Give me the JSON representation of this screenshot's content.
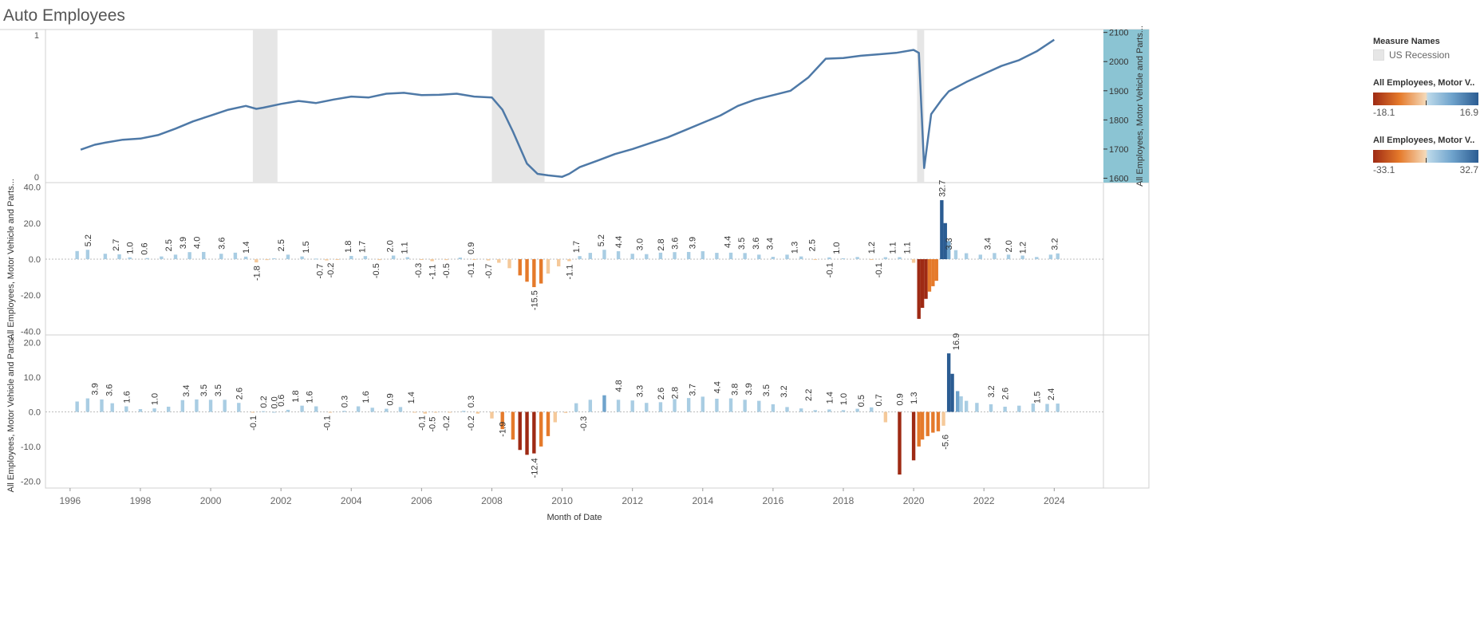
{
  "dashboard": {
    "title": "Auto Employees",
    "x_axis_title": "Month of Date"
  },
  "legends": {
    "measure_names": {
      "title": "Measure Names",
      "item": "US Recession",
      "color": "#e6e6e6"
    },
    "ramp_top": {
      "title": "All Employees, Motor V..",
      "min": "-18.1",
      "max": "16.9"
    },
    "ramp_bottom": {
      "title": "All Employees, Motor V..",
      "min": "-33.1",
      "max": "32.7"
    },
    "colors": {
      "neg_dark": "#9e2a14",
      "neg_mid": "#e57a2b",
      "neg_light": "#f5c99a",
      "pos_light": "#a9cde3",
      "pos_mid": "#6fa3cc",
      "pos_dark": "#2b5c92",
      "line": "#4e79a7",
      "recession": "#e6e6e6",
      "axis_band": "#8bc4d3"
    }
  },
  "chart_data": [
    {
      "type": "line",
      "title": "",
      "xlabel": "Month of Date",
      "ylabel": "All Employees, Motor Vehicle and Parts...",
      "left_axis": {
        "ticks": [
          "0",
          "1"
        ]
      },
      "ylim": [
        1585,
        2110
      ],
      "y_ticks": [
        1600,
        1700,
        1800,
        1900,
        2000,
        2100
      ],
      "recessions": [
        [
          2001.2,
          2001.9
        ],
        [
          2008.0,
          2009.5
        ],
        [
          2020.1,
          2020.3
        ]
      ],
      "series": [
        {
          "x": [
            1996.3,
            1996.7,
            1997.0,
            1997.5,
            1998.0,
            1998.5,
            1999.0,
            1999.5,
            2000.0,
            2000.5,
            2001.0,
            2001.3,
            2001.5,
            2002.0,
            2002.5,
            2003.0,
            2003.5,
            2004.0,
            2004.5,
            2005.0,
            2005.5,
            2006.0,
            2006.5,
            2007.0,
            2007.5,
            2008.0,
            2008.3,
            2008.6,
            2009.0,
            2009.3,
            2009.6,
            2010.0,
            2010.2,
            2010.5,
            2011.0,
            2011.5,
            2012.0,
            2012.5,
            2013.0,
            2013.5,
            2014.0,
            2014.5,
            2015.0,
            2015.5,
            2016.0,
            2016.5,
            2017.0,
            2017.5,
            2018.0,
            2018.5,
            2019.0,
            2019.5,
            2020.0,
            2020.15,
            2020.3,
            2020.5,
            2020.8,
            2021.0,
            2021.5,
            2022.0,
            2022.5,
            2023.0,
            2023.5,
            2024.0
          ],
          "y": [
            1698,
            1715,
            1722,
            1732,
            1736,
            1748,
            1770,
            1795,
            1815,
            1835,
            1848,
            1838,
            1842,
            1855,
            1865,
            1858,
            1870,
            1880,
            1877,
            1890,
            1893,
            1885,
            1886,
            1890,
            1880,
            1877,
            1835,
            1760,
            1650,
            1615,
            1610,
            1605,
            1615,
            1638,
            1660,
            1683,
            1700,
            1720,
            1740,
            1765,
            1790,
            1815,
            1848,
            1870,
            1885,
            1900,
            1945,
            2010,
            2012,
            2020,
            2025,
            2030,
            2040,
            2030,
            1635,
            1820,
            1870,
            1898,
            1930,
            1958,
            1985,
            2005,
            2035,
            2075
          ]
        }
      ]
    },
    {
      "type": "bar",
      "title": "",
      "ylabel": "All Employees, Motor Vehicle and Parts...",
      "ylim": [
        -42,
        42
      ],
      "y_ticks": [
        "40.0",
        "20.0",
        "0.0",
        "-20.0",
        "-40.0"
      ],
      "x": [
        1996.2,
        1996.5,
        1997.0,
        1997.4,
        1997.7,
        1998.2,
        1998.6,
        1999.0,
        1999.4,
        1999.8,
        2000.3,
        2000.7,
        2001.0,
        2001.3,
        2001.6,
        2001.8,
        2002.2,
        2002.6,
        2003.0,
        2003.3,
        2003.6,
        2004.0,
        2004.4,
        2004.8,
        2005.2,
        2005.6,
        2006.0,
        2006.3,
        2006.7,
        2007.1,
        2007.5,
        2007.9,
        2008.2,
        2008.5,
        2008.8,
        2009.0,
        2009.2,
        2009.4,
        2009.6,
        2009.9,
        2010.2,
        2010.5,
        2010.8,
        2011.2,
        2011.6,
        2012.0,
        2012.4,
        2012.8,
        2013.2,
        2013.6,
        2014.0,
        2014.4,
        2014.8,
        2015.2,
        2015.6,
        2016.0,
        2016.4,
        2016.8,
        2017.2,
        2017.6,
        2018.0,
        2018.4,
        2018.8,
        2019.2,
        2019.6,
        2020.0,
        2020.15,
        2020.25,
        2020.35,
        2020.45,
        2020.55,
        2020.65,
        2020.8,
        2020.9,
        2021.0,
        2021.2,
        2021.5,
        2021.9,
        2022.3,
        2022.7,
        2023.1,
        2023.5,
        2023.9,
        2024.1
      ],
      "values": [
        4.5,
        5.2,
        3.0,
        2.7,
        1.0,
        0.6,
        1.5,
        2.5,
        3.9,
        4.0,
        3.0,
        3.6,
        1.4,
        -1.8,
        -0.5,
        0.5,
        2.5,
        1.5,
        0.3,
        -0.7,
        -0.2,
        1.8,
        1.7,
        -0.5,
        2.0,
        1.1,
        -0.3,
        -1.1,
        -0.5,
        0.9,
        -0.1,
        -0.7,
        -2.0,
        -5.0,
        -9.0,
        -12.5,
        -15.5,
        -13.5,
        -8.0,
        -4.0,
        -1.1,
        1.7,
        3.5,
        5.2,
        4.4,
        3.0,
        2.8,
        3.6,
        3.9,
        4.0,
        4.4,
        3.5,
        3.6,
        3.4,
        2.5,
        1.3,
        2.5,
        1.5,
        -0.1,
        1.0,
        0.5,
        1.2,
        -0.1,
        1.1,
        1.1,
        -2.0,
        -33.1,
        -27.0,
        -22.0,
        -18.0,
        -15.0,
        -12.0,
        32.7,
        20.0,
        10.0,
        5.0,
        3.3,
        2.5,
        3.4,
        2.5,
        2.0,
        1.2,
        2.5,
        3.2
      ],
      "data_labels": [
        {
          "x": 1996.5,
          "value": 5.2,
          "text": "5.2"
        },
        {
          "x": 1997.3,
          "value": 2.7,
          "text": "2.7"
        },
        {
          "x": 1997.7,
          "value": 1.0,
          "text": "1.0"
        },
        {
          "x": 1998.1,
          "value": 0.6,
          "text": "0.6"
        },
        {
          "x": 1998.8,
          "value": 2.5,
          "text": "2.5"
        },
        {
          "x": 1999.2,
          "value": 3.9,
          "text": "3.9"
        },
        {
          "x": 1999.6,
          "value": 4.0,
          "text": "4.0"
        },
        {
          "x": 2000.3,
          "value": 3.6,
          "text": "3.6"
        },
        {
          "x": 2001.0,
          "value": 1.4,
          "text": "1.4"
        },
        {
          "x": 2001.3,
          "value": -1.8,
          "text": "-1.8"
        },
        {
          "x": 2002.0,
          "value": 2.5,
          "text": "2.5"
        },
        {
          "x": 2002.7,
          "value": 1.5,
          "text": "1.5"
        },
        {
          "x": 2003.1,
          "value": -0.7,
          "text": "-0.7"
        },
        {
          "x": 2003.4,
          "value": -0.2,
          "text": "-0.2"
        },
        {
          "x": 2003.9,
          "value": 1.8,
          "text": "1.8"
        },
        {
          "x": 2004.3,
          "value": 1.7,
          "text": "1.7"
        },
        {
          "x": 2004.7,
          "value": -0.5,
          "text": "-0.5"
        },
        {
          "x": 2005.1,
          "value": 2.0,
          "text": "2.0"
        },
        {
          "x": 2005.5,
          "value": 1.1,
          "text": "1.1"
        },
        {
          "x": 2005.9,
          "value": -0.3,
          "text": "-0.3"
        },
        {
          "x": 2006.3,
          "value": -1.1,
          "text": "-1.1"
        },
        {
          "x": 2006.7,
          "value": -0.5,
          "text": "-0.5"
        },
        {
          "x": 2007.4,
          "value": 0.9,
          "text": "0.9"
        },
        {
          "x": 2007.4,
          "value": -0.1,
          "text": "-0.1"
        },
        {
          "x": 2007.9,
          "value": -0.7,
          "text": "-0.7"
        },
        {
          "x": 2009.2,
          "value": -15.5,
          "text": "-15.5"
        },
        {
          "x": 2010.2,
          "value": -1.1,
          "text": "-1.1"
        },
        {
          "x": 2010.4,
          "value": 1.7,
          "text": "1.7"
        },
        {
          "x": 2011.1,
          "value": 5.2,
          "text": "5.2"
        },
        {
          "x": 2011.6,
          "value": 4.4,
          "text": "4.4"
        },
        {
          "x": 2012.2,
          "value": 3.0,
          "text": "3.0"
        },
        {
          "x": 2012.8,
          "value": 2.8,
          "text": "2.8"
        },
        {
          "x": 2013.2,
          "value": 3.6,
          "text": "3.6"
        },
        {
          "x": 2013.7,
          "value": 3.9,
          "text": "3.9"
        },
        {
          "x": 2014.7,
          "value": 4.4,
          "text": "4.4"
        },
        {
          "x": 2015.1,
          "value": 3.5,
          "text": "3.5"
        },
        {
          "x": 2015.5,
          "value": 3.6,
          "text": "3.6"
        },
        {
          "x": 2015.9,
          "value": 3.4,
          "text": "3.4"
        },
        {
          "x": 2016.6,
          "value": 1.3,
          "text": "1.3"
        },
        {
          "x": 2017.1,
          "value": 2.5,
          "text": "2.5"
        },
        {
          "x": 2017.6,
          "value": -0.1,
          "text": "-0.1"
        },
        {
          "x": 2017.8,
          "value": 1.0,
          "text": "1.0"
        },
        {
          "x": 2018.8,
          "value": 1.2,
          "text": "1.2"
        },
        {
          "x": 2019.0,
          "value": -0.1,
          "text": "-0.1"
        },
        {
          "x": 2019.4,
          "value": 1.1,
          "text": "1.1"
        },
        {
          "x": 2019.8,
          "value": 1.1,
          "text": "1.1"
        },
        {
          "x": 2020.8,
          "value": 32.7,
          "text": "32.7"
        },
        {
          "x": 2021.0,
          "value": 3.3,
          "text": "3.3"
        },
        {
          "x": 2022.1,
          "value": 3.4,
          "text": "3.4"
        },
        {
          "x": 2022.7,
          "value": 2.0,
          "text": "2.0"
        },
        {
          "x": 2023.1,
          "value": 1.2,
          "text": "1.2"
        },
        {
          "x": 2024.0,
          "value": 3.2,
          "text": "3.2"
        }
      ]
    },
    {
      "type": "bar",
      "title": "",
      "ylabel": "All Employees, Motor Vehicle and Parts...",
      "ylim": [
        -22,
        22
      ],
      "y_ticks": [
        "20.0",
        "10.0",
        "0.0",
        "-10.0",
        "-20.0"
      ],
      "x": [
        1996.2,
        1996.5,
        1996.9,
        1997.2,
        1997.6,
        1998.0,
        1998.4,
        1998.8,
        1999.2,
        1999.6,
        2000.0,
        2000.4,
        2000.8,
        2001.2,
        2001.5,
        2001.8,
        2002.2,
        2002.6,
        2003.0,
        2003.4,
        2003.8,
        2004.2,
        2004.6,
        2005.0,
        2005.4,
        2005.8,
        2006.1,
        2006.4,
        2006.8,
        2007.2,
        2007.6,
        2008.0,
        2008.3,
        2008.6,
        2008.8,
        2009.0,
        2009.2,
        2009.4,
        2009.6,
        2009.8,
        2010.1,
        2010.4,
        2010.8,
        2011.2,
        2011.6,
        2012.0,
        2012.4,
        2012.8,
        2013.2,
        2013.6,
        2014.0,
        2014.4,
        2014.8,
        2015.2,
        2015.6,
        2016.0,
        2016.4,
        2016.8,
        2017.2,
        2017.6,
        2018.0,
        2018.4,
        2018.8,
        2019.2,
        2019.6,
        2020.0,
        2020.15,
        2020.25,
        2020.4,
        2020.55,
        2020.7,
        2020.85,
        2021.0,
        2021.1,
        2021.25,
        2021.35,
        2021.5,
        2021.8,
        2022.2,
        2022.6,
        2023.0,
        2023.4,
        2023.8,
        2024.1
      ],
      "values": [
        3.0,
        3.9,
        3.6,
        2.5,
        1.6,
        0.8,
        1.0,
        1.5,
        3.4,
        3.6,
        3.5,
        3.5,
        2.6,
        -0.1,
        0.2,
        0.0,
        0.6,
        1.8,
        1.6,
        -0.1,
        0.3,
        1.6,
        1.2,
        0.9,
        1.4,
        -0.1,
        -0.5,
        -0.2,
        -0.2,
        0.3,
        -0.5,
        -1.9,
        -5.0,
        -8.0,
        -11.0,
        -12.4,
        -12.0,
        -10.0,
        -7.0,
        -3.0,
        -0.3,
        2.5,
        3.5,
        4.8,
        3.5,
        3.3,
        2.6,
        2.8,
        3.7,
        4.0,
        4.4,
        3.8,
        3.9,
        3.5,
        3.2,
        2.2,
        1.4,
        1.0,
        0.5,
        0.7,
        0.5,
        0.9,
        1.3,
        -3.0,
        -18.1,
        -14.0,
        -10.0,
        -8.0,
        -7.0,
        -6.0,
        -5.6,
        -4.0,
        16.9,
        11.0,
        6.0,
        4.5,
        3.2,
        2.6,
        2.2,
        1.5,
        1.8,
        2.4,
        2.3,
        2.4
      ],
      "data_labels": [
        {
          "x": 1996.7,
          "value": 3.9,
          "text": "3.9"
        },
        {
          "x": 1997.1,
          "value": 3.6,
          "text": "3.6"
        },
        {
          "x": 1997.6,
          "value": 1.6,
          "text": "1.6"
        },
        {
          "x": 1998.4,
          "value": 1.0,
          "text": "1.0"
        },
        {
          "x": 1999.3,
          "value": 3.4,
          "text": "3.4"
        },
        {
          "x": 1999.8,
          "value": 3.5,
          "text": "3.5"
        },
        {
          "x": 2000.2,
          "value": 3.5,
          "text": "3.5"
        },
        {
          "x": 2000.8,
          "value": 2.6,
          "text": "2.6"
        },
        {
          "x": 2001.2,
          "value": -0.1,
          "text": "-0.1"
        },
        {
          "x": 2001.5,
          "value": 0.2,
          "text": "0.2"
        },
        {
          "x": 2001.8,
          "value": 0.0,
          "text": "0.0"
        },
        {
          "x": 2002.0,
          "value": 0.6,
          "text": "0.6"
        },
        {
          "x": 2002.4,
          "value": 1.8,
          "text": "1.8"
        },
        {
          "x": 2002.8,
          "value": 1.6,
          "text": "1.6"
        },
        {
          "x": 2003.3,
          "value": -0.1,
          "text": "-0.1"
        },
        {
          "x": 2003.8,
          "value": 0.3,
          "text": "0.3"
        },
        {
          "x": 2004.4,
          "value": 1.6,
          "text": "1.6"
        },
        {
          "x": 2005.1,
          "value": 0.9,
          "text": "0.9"
        },
        {
          "x": 2005.7,
          "value": 1.4,
          "text": "1.4"
        },
        {
          "x": 2006.0,
          "value": -0.1,
          "text": "-0.1"
        },
        {
          "x": 2006.3,
          "value": -0.5,
          "text": "-0.5"
        },
        {
          "x": 2006.7,
          "value": -0.2,
          "text": "-0.2"
        },
        {
          "x": 2007.4,
          "value": -0.2,
          "text": "-0.2"
        },
        {
          "x": 2007.4,
          "value": 0.3,
          "text": "0.3"
        },
        {
          "x": 2008.3,
          "value": -1.9,
          "text": "-1.9"
        },
        {
          "x": 2009.2,
          "value": -12.4,
          "text": "-12.4"
        },
        {
          "x": 2010.6,
          "value": -0.3,
          "text": "-0.3"
        },
        {
          "x": 2011.6,
          "value": 4.8,
          "text": "4.8"
        },
        {
          "x": 2012.2,
          "value": 3.3,
          "text": "3.3"
        },
        {
          "x": 2012.8,
          "value": 2.6,
          "text": "2.6"
        },
        {
          "x": 2013.2,
          "value": 2.8,
          "text": "2.8"
        },
        {
          "x": 2013.7,
          "value": 3.7,
          "text": "3.7"
        },
        {
          "x": 2014.4,
          "value": 4.4,
          "text": "4.4"
        },
        {
          "x": 2014.9,
          "value": 3.8,
          "text": "3.8"
        },
        {
          "x": 2015.3,
          "value": 3.9,
          "text": "3.9"
        },
        {
          "x": 2015.8,
          "value": 3.5,
          "text": "3.5"
        },
        {
          "x": 2016.3,
          "value": 3.2,
          "text": "3.2"
        },
        {
          "x": 2017.0,
          "value": 2.2,
          "text": "2.2"
        },
        {
          "x": 2017.6,
          "value": 1.4,
          "text": "1.4"
        },
        {
          "x": 2018.0,
          "value": 1.0,
          "text": "1.0"
        },
        {
          "x": 2018.5,
          "value": 0.5,
          "text": "0.5"
        },
        {
          "x": 2019.0,
          "value": 0.7,
          "text": "0.7"
        },
        {
          "x": 2019.6,
          "value": 0.9,
          "text": "0.9"
        },
        {
          "x": 2020.0,
          "value": 1.3,
          "text": "1.3"
        },
        {
          "x": 2020.9,
          "value": -5.6,
          "text": "-5.6"
        },
        {
          "x": 2021.2,
          "value": 16.9,
          "text": "16.9"
        },
        {
          "x": 2022.2,
          "value": 3.2,
          "text": "3.2"
        },
        {
          "x": 2022.6,
          "value": 2.6,
          "text": "2.6"
        },
        {
          "x": 2023.5,
          "value": 1.5,
          "text": "1.5"
        },
        {
          "x": 2023.9,
          "value": 2.4,
          "text": "2.4"
        }
      ]
    }
  ],
  "x_axis": {
    "ticks": [
      "1996",
      "1998",
      "2000",
      "2002",
      "2004",
      "2006",
      "2008",
      "2010",
      "2012",
      "2014",
      "2016",
      "2018",
      "2020",
      "2022",
      "2024"
    ]
  }
}
